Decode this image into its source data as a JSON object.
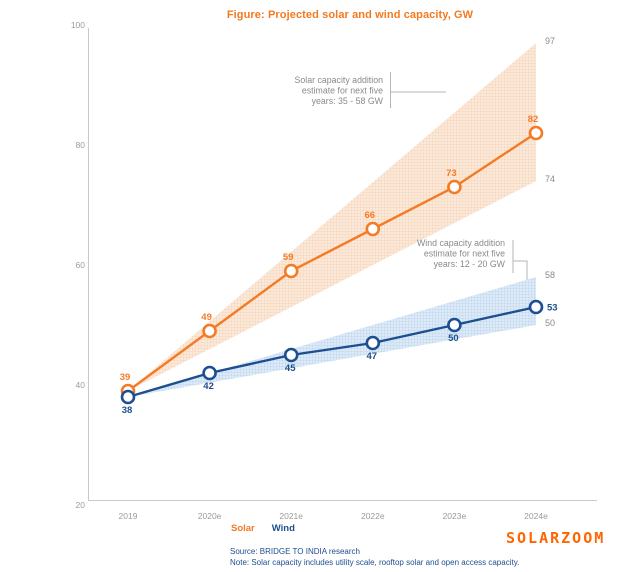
{
  "title": "Figure: Projected solar and wind capacity, GW",
  "watermark": "SOLARZOOM",
  "legend": {
    "solar": "Solar",
    "wind": "Wind"
  },
  "footer": {
    "source": "Source: BRIDGE TO INDIA research",
    "note": "Note: Solar capacity includes utility scale, rooftop solar and open access capacity."
  },
  "annotations": {
    "solar": {
      "lines": [
        "Solar capacity addition",
        "estimate for next five",
        "years: 35 - 58 GW"
      ]
    },
    "wind": {
      "lines": [
        "Wind capacity addition",
        "estimate for next five",
        "years: 12 - 20 GW"
      ]
    }
  },
  "colors": {
    "solar": "#f47b25",
    "wind": "#1d4e8f",
    "solar_band_fill": "#fbe9da",
    "solar_band_hatch": "#f2c5a0",
    "wind_band_fill": "#ddeaf7",
    "wind_band_hatch": "#a6c6e5",
    "axis": "#c9c9c9",
    "tick_text": "#9b9b9b",
    "annotation_text": "#8a8a8a",
    "bracket": "#b5b5b5",
    "title": "#f4791f",
    "watermark": "#ff6600",
    "footer_text": "#1d4e8f"
  },
  "chart_data": {
    "type": "line",
    "title": "Figure: Projected solar and wind capacity, GW",
    "categories": [
      "2019",
      "2020e",
      "2021e",
      "2022e",
      "2023e",
      "2024e"
    ],
    "series": [
      {
        "name": "Solar",
        "values": [
          39,
          49,
          59,
          66,
          73,
          82
        ],
        "label_pos": "above",
        "band": {
          "upper": [
            39,
            50.6,
            62.2,
            73.8,
            85.4,
            97
          ],
          "lower": [
            39,
            46,
            53,
            60,
            67,
            74
          ]
        },
        "band_end_labels": [
          97,
          74
        ],
        "band_range_note": "Solar capacity addition estimate for next five years: 35 - 58 GW"
      },
      {
        "name": "Wind",
        "values": [
          38,
          42,
          45,
          47,
          50,
          53
        ],
        "label_pos": "below-then-right",
        "band": {
          "upper": [
            38,
            42,
            46,
            50,
            54,
            58
          ],
          "lower": [
            38,
            40.4,
            42.8,
            45.2,
            47.6,
            50
          ]
        },
        "band_end_labels": [
          58,
          50
        ],
        "band_range_note": "Wind capacity addition estimate for next five years: 12 - 20 GW"
      }
    ],
    "ylim": [
      20,
      100
    ],
    "yticks": [
      20,
      40,
      60,
      80,
      100
    ],
    "xlabel": "",
    "ylabel": "",
    "grid": false,
    "legend_position": "bottom"
  }
}
